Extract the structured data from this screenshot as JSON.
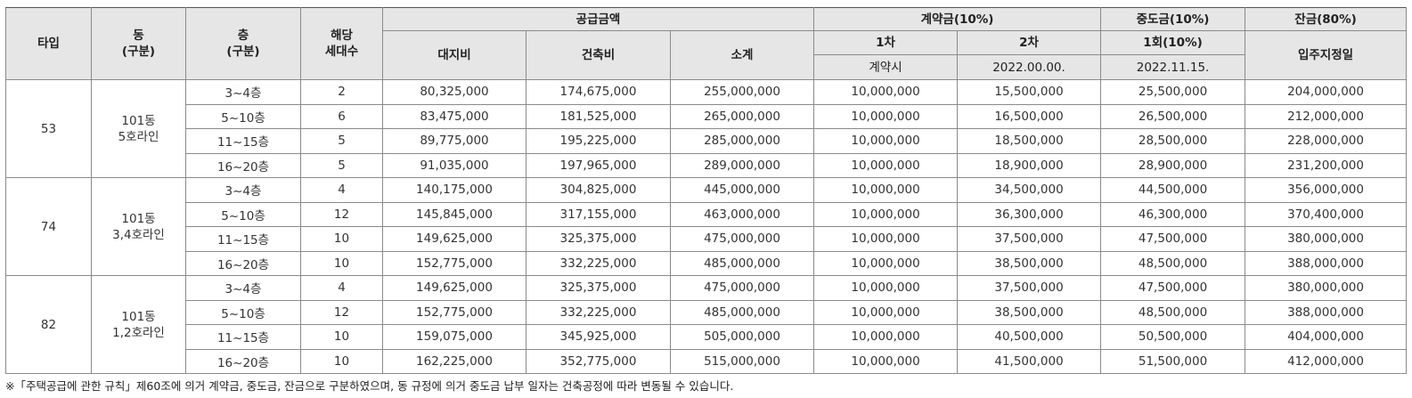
{
  "headers": {
    "type": "타입",
    "dong": "동",
    "dong_sub": "(구분)",
    "floor": "층",
    "floor_sub": "(구분)",
    "units": "해당",
    "units_sub": "세대수",
    "supply": "공급금액",
    "land": "대지비",
    "building": "건축비",
    "subtotal": "소계",
    "contract": "계약금(10%)",
    "contract_1": "1차",
    "contract_2": "2차",
    "contract_1_when": "계약시",
    "contract_2_when": "2022.00.00.",
    "middle": "중도금(10%)",
    "middle_1": "1회(10%)",
    "middle_1_when": "2022.11.15.",
    "balance": "잔금(80%)",
    "balance_when": "입주지정일"
  },
  "groups": [
    {
      "type": "53",
      "dong": "101동",
      "line": "5호라인",
      "rows": [
        {
          "floor": "3~4층",
          "units": "2",
          "land": "80,325,000",
          "building": "174,675,000",
          "subtotal": "255,000,000",
          "c1": "10,000,000",
          "c2": "15,500,000",
          "m1": "25,500,000",
          "bal": "204,000,000"
        },
        {
          "floor": "5~10층",
          "units": "6",
          "land": "83,475,000",
          "building": "181,525,000",
          "subtotal": "265,000,000",
          "c1": "10,000,000",
          "c2": "16,500,000",
          "m1": "26,500,000",
          "bal": "212,000,000"
        },
        {
          "floor": "11~15층",
          "units": "5",
          "land": "89,775,000",
          "building": "195,225,000",
          "subtotal": "285,000,000",
          "c1": "10,000,000",
          "c2": "18,500,000",
          "m1": "28,500,000",
          "bal": "228,000,000"
        },
        {
          "floor": "16~20층",
          "units": "5",
          "land": "91,035,000",
          "building": "197,965,000",
          "subtotal": "289,000,000",
          "c1": "10,000,000",
          "c2": "18,900,000",
          "m1": "28,900,000",
          "bal": "231,200,000"
        }
      ]
    },
    {
      "type": "74",
      "dong": "101동",
      "line": "3,4호라인",
      "rows": [
        {
          "floor": "3~4층",
          "units": "4",
          "land": "140,175,000",
          "building": "304,825,000",
          "subtotal": "445,000,000",
          "c1": "10,000,000",
          "c2": "34,500,000",
          "m1": "44,500,000",
          "bal": "356,000,000"
        },
        {
          "floor": "5~10층",
          "units": "12",
          "land": "145,845,000",
          "building": "317,155,000",
          "subtotal": "463,000,000",
          "c1": "10,000,000",
          "c2": "36,300,000",
          "m1": "46,300,000",
          "bal": "370,400,000"
        },
        {
          "floor": "11~15층",
          "units": "10",
          "land": "149,625,000",
          "building": "325,375,000",
          "subtotal": "475,000,000",
          "c1": "10,000,000",
          "c2": "37,500,000",
          "m1": "47,500,000",
          "bal": "380,000,000"
        },
        {
          "floor": "16~20층",
          "units": "10",
          "land": "152,775,000",
          "building": "332,225,000",
          "subtotal": "485,000,000",
          "c1": "10,000,000",
          "c2": "38,500,000",
          "m1": "48,500,000",
          "bal": "388,000,000"
        }
      ]
    },
    {
      "type": "82",
      "dong": "101동",
      "line": "1,2호라인",
      "rows": [
        {
          "floor": "3~4층",
          "units": "4",
          "land": "149,625,000",
          "building": "325,375,000",
          "subtotal": "475,000,000",
          "c1": "10,000,000",
          "c2": "37,500,000",
          "m1": "47,500,000",
          "bal": "380,000,000"
        },
        {
          "floor": "5~10층",
          "units": "12",
          "land": "152,775,000",
          "building": "332,225,000",
          "subtotal": "485,000,000",
          "c1": "10,000,000",
          "c2": "38,500,000",
          "m1": "48,500,000",
          "bal": "388,000,000"
        },
        {
          "floor": "11~15층",
          "units": "10",
          "land": "159,075,000",
          "building": "345,925,000",
          "subtotal": "505,000,000",
          "c1": "10,000,000",
          "c2": "40,500,000",
          "m1": "50,500,000",
          "bal": "404,000,000"
        },
        {
          "floor": "16~20층",
          "units": "10",
          "land": "162,225,000",
          "building": "352,775,000",
          "subtotal": "515,000,000",
          "c1": "10,000,000",
          "c2": "41,500,000",
          "m1": "51,500,000",
          "bal": "412,000,000"
        }
      ]
    }
  ],
  "note": "※「주택공급에 관한 규칙」제60조에 의거 계약금, 중도금, 잔금으로 구분하였으며, 동 규정에 의거 중도금 납부 일자는 건축공정에 따라 변동될 수 있습니다."
}
